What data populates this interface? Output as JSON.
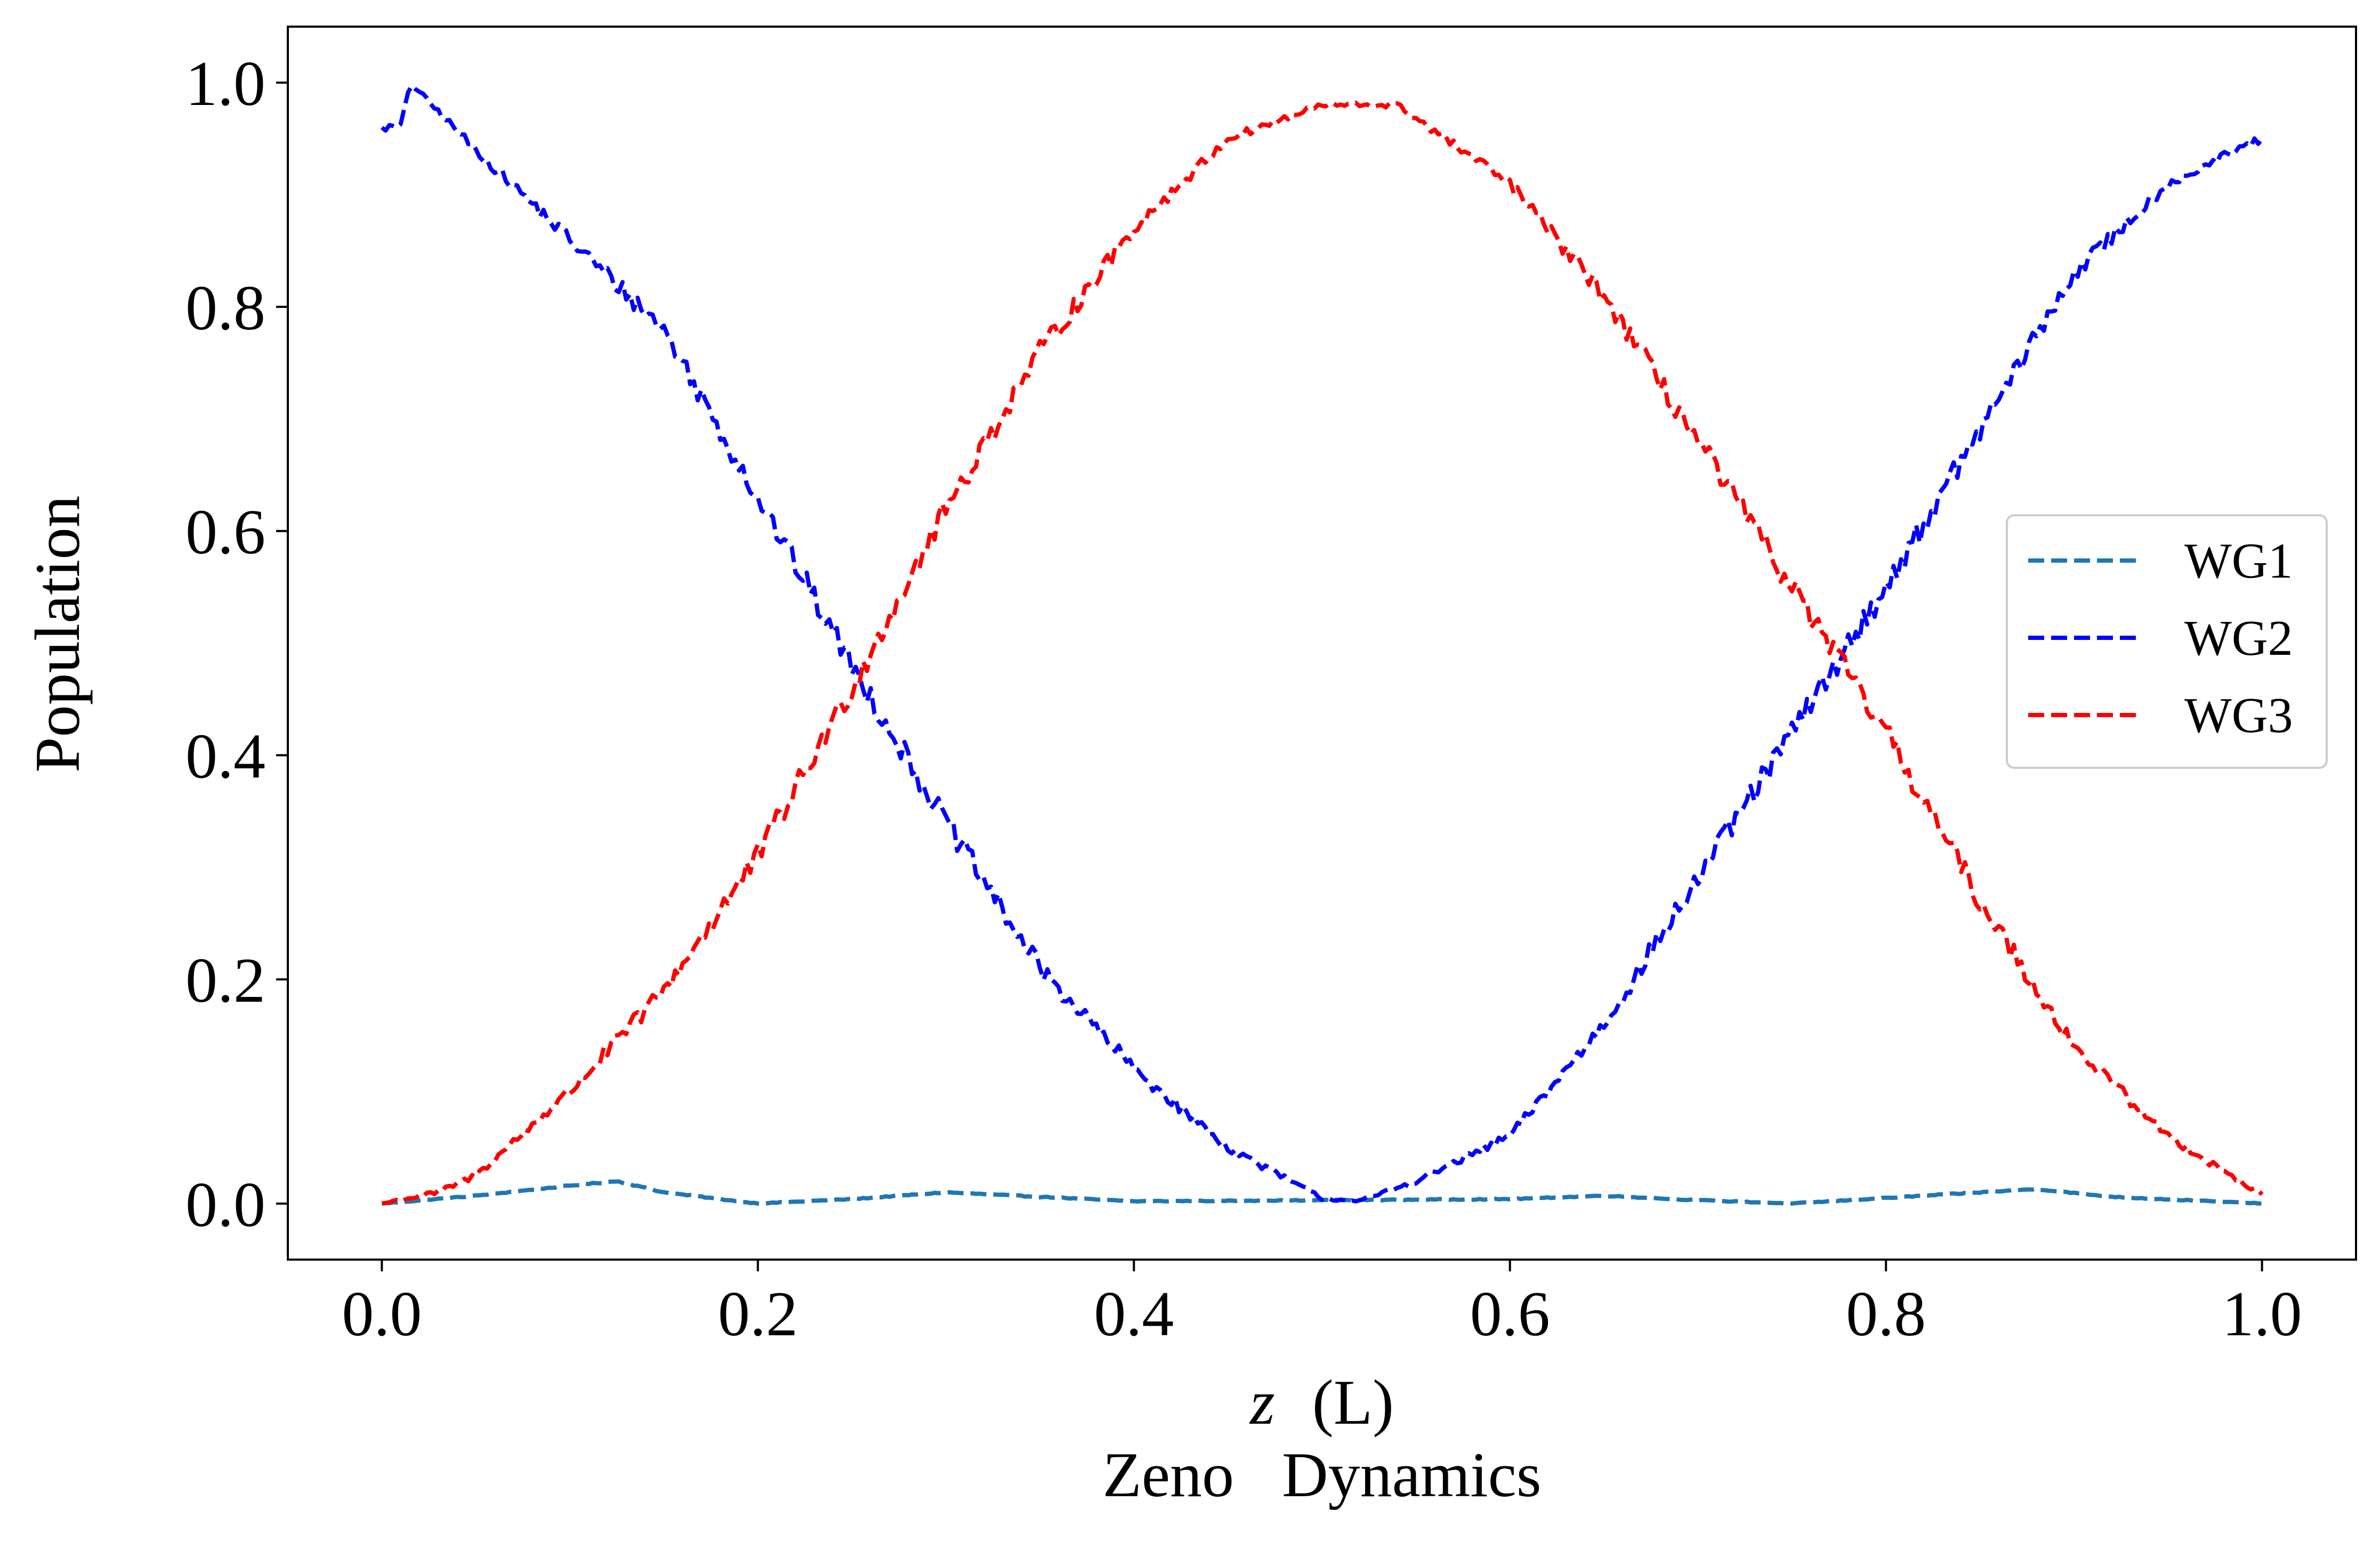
{
  "chart_data": {
    "type": "line",
    "title": "",
    "caption": "Zeno   Dynamics",
    "xlabel": {
      "var": "z",
      "unit": "(L)"
    },
    "ylabel": "Population",
    "xlim": [
      -0.05,
      1.05
    ],
    "ylim": [
      -0.05,
      1.05
    ],
    "x_ticks": [
      "0.0",
      "0.2",
      "0.4",
      "0.6",
      "0.8",
      "1.0"
    ],
    "y_ticks": [
      "0.0",
      "0.2",
      "0.4",
      "0.6",
      "0.8",
      "1.0"
    ],
    "grid": false,
    "legend_position": "center-right",
    "x_range": [
      0.0,
      1.0
    ],
    "samples": 501,
    "series": [
      {
        "name": "WG1",
        "color": "#1f77b4",
        "style": "dashed",
        "x": [
          0.0,
          0.05,
          0.1,
          0.125,
          0.15,
          0.2,
          0.25,
          0.3,
          0.4,
          0.5,
          0.6,
          0.65,
          0.7,
          0.75,
          0.8,
          0.85,
          0.88,
          0.92,
          1.0
        ],
        "y": [
          0.0,
          0.007,
          0.016,
          0.02,
          0.01,
          0.0,
          0.004,
          0.01,
          0.002,
          0.003,
          0.004,
          0.007,
          0.003,
          0.0,
          0.005,
          0.01,
          0.013,
          0.006,
          0.0
        ]
      },
      {
        "name": "WG2",
        "color": "#0000ff",
        "style": "dashed",
        "x": [
          0.0,
          0.01,
          0.015,
          0.05,
          0.1,
          0.15,
          0.2,
          0.25,
          0.3,
          0.35,
          0.4,
          0.45,
          0.5,
          0.52,
          0.55,
          0.6,
          0.65,
          0.7,
          0.75,
          0.8,
          0.85,
          0.9,
          0.95,
          1.0
        ],
        "y": [
          0.96,
          0.96,
          1.0,
          0.94,
          0.86,
          0.78,
          0.63,
          0.48,
          0.34,
          0.21,
          0.12,
          0.05,
          0.005,
          0.002,
          0.02,
          0.06,
          0.16,
          0.29,
          0.42,
          0.55,
          0.69,
          0.83,
          0.91,
          0.95
        ]
      },
      {
        "name": "WG3",
        "color": "#ff0000",
        "style": "dashed",
        "x": [
          0.0,
          0.03,
          0.05,
          0.1,
          0.15,
          0.2,
          0.25,
          0.3,
          0.35,
          0.4,
          0.45,
          0.5,
          0.54,
          0.6,
          0.65,
          0.7,
          0.75,
          0.8,
          0.85,
          0.9,
          0.95,
          1.0
        ],
        "y": [
          0.0,
          0.01,
          0.025,
          0.1,
          0.19,
          0.31,
          0.46,
          0.62,
          0.76,
          0.87,
          0.95,
          0.98,
          0.98,
          0.91,
          0.81,
          0.68,
          0.55,
          0.42,
          0.27,
          0.14,
          0.06,
          0.008
        ]
      }
    ]
  }
}
